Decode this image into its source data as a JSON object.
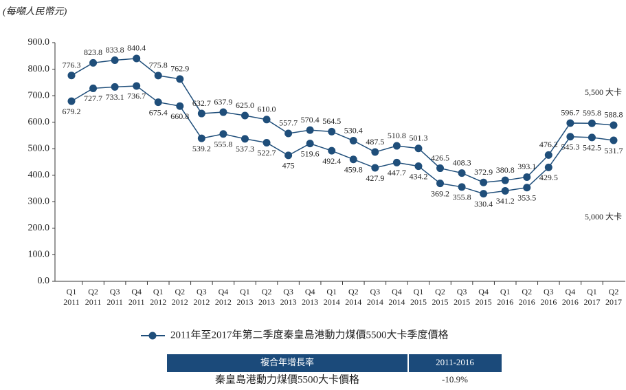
{
  "chart_data": {
    "type": "line",
    "unit_label": "(每噸人民幣元)",
    "categories": [
      [
        "Q1",
        "2011"
      ],
      [
        "Q2",
        "2011"
      ],
      [
        "Q3",
        "2011"
      ],
      [
        "Q4",
        "2011"
      ],
      [
        "Q1",
        "2012"
      ],
      [
        "Q2",
        "2012"
      ],
      [
        "Q3",
        "2012"
      ],
      [
        "Q4",
        "2012"
      ],
      [
        "Q1",
        "2013"
      ],
      [
        "Q2",
        "2013"
      ],
      [
        "Q3",
        "2013"
      ],
      [
        "Q4",
        "2013"
      ],
      [
        "Q1",
        "2014"
      ],
      [
        "Q2",
        "2014"
      ],
      [
        "Q3",
        "2014"
      ],
      [
        "Q4",
        "2014"
      ],
      [
        "Q1",
        "2015"
      ],
      [
        "Q2",
        "2015"
      ],
      [
        "Q3",
        "2015"
      ],
      [
        "Q4",
        "2015"
      ],
      [
        "Q1",
        "2016"
      ],
      [
        "Q2",
        "2016"
      ],
      [
        "Q3",
        "2016"
      ],
      [
        "Q4",
        "2016"
      ],
      [
        "Q1",
        "2017"
      ],
      [
        "Q2",
        "2017"
      ]
    ],
    "series": [
      {
        "name": "5,500 大卡",
        "color": "#1f4e7a",
        "values": [
          776.3,
          823.8,
          833.8,
          840.4,
          775.8,
          762.9,
          632.7,
          637.9,
          625.0,
          610.0,
          557.7,
          570.4,
          564.5,
          530.4,
          487.5,
          510.8,
          501.3,
          426.5,
          408.3,
          372.9,
          380.8,
          393.1,
          476.2,
          596.7,
          595.8,
          588.8
        ],
        "value_labels": [
          "776.3",
          "823.8",
          "833.8",
          "840.4",
          "775.8",
          "762.9",
          "632.7",
          "637.9",
          "625.0",
          "610.0",
          "557.7",
          "570.4",
          "564.5",
          "530.4",
          "487.5",
          "510.8",
          "501.3",
          "426.5",
          "408.3",
          "372.9",
          "380.8",
          "393.1",
          "476.2",
          "596.7",
          "595.8",
          "588.8"
        ]
      },
      {
        "name": "5,000 大卡",
        "color": "#1f4e7a",
        "values": [
          679.2,
          727.7,
          733.1,
          736.7,
          675.4,
          660.8,
          539.2,
          555.8,
          537.3,
          522.7,
          475,
          519.6,
          492.4,
          459.8,
          427.9,
          447.7,
          434.2,
          369.2,
          355.8,
          330.4,
          341.2,
          353.5,
          429.5,
          545.3,
          542.5,
          531.7
        ],
        "value_labels": [
          "679.2",
          "727.7",
          "733.1",
          "736.7",
          "675.4",
          "660.8",
          "539.2",
          "555.8",
          "537.3",
          "522.7",
          "475",
          "519.6",
          "492.4",
          "459.8",
          "427.9",
          "447.7",
          "434.2",
          "369.2",
          "355.8",
          "330.4",
          "341.2",
          "353.5",
          "429.5",
          "545.3",
          "542.5",
          "531.7"
        ]
      }
    ],
    "legend": "2011年至2017年第二季度秦皇島港動力煤價5500大卡季度價格",
    "ylim": [
      0,
      900
    ],
    "yticks": [
      {
        "value": 0,
        "label": "0.0"
      },
      {
        "value": 100,
        "label": "100.0"
      },
      {
        "value": 200,
        "label": "200.0"
      },
      {
        "value": 300,
        "label": "300.0"
      },
      {
        "value": 400,
        "label": "400.0"
      },
      {
        "value": 500,
        "label": "500.0"
      },
      {
        "value": 600,
        "label": "600.0"
      },
      {
        "value": 700,
        "label": "700.0"
      },
      {
        "value": 800,
        "label": "800.0"
      },
      {
        "value": 900,
        "label": "900.0"
      }
    ]
  },
  "table": {
    "header": [
      "複合年增長率",
      "2011-2016"
    ],
    "rows": [
      [
        "秦皇島港動力煤價5500大卡價格",
        "-10.9%"
      ]
    ]
  }
}
